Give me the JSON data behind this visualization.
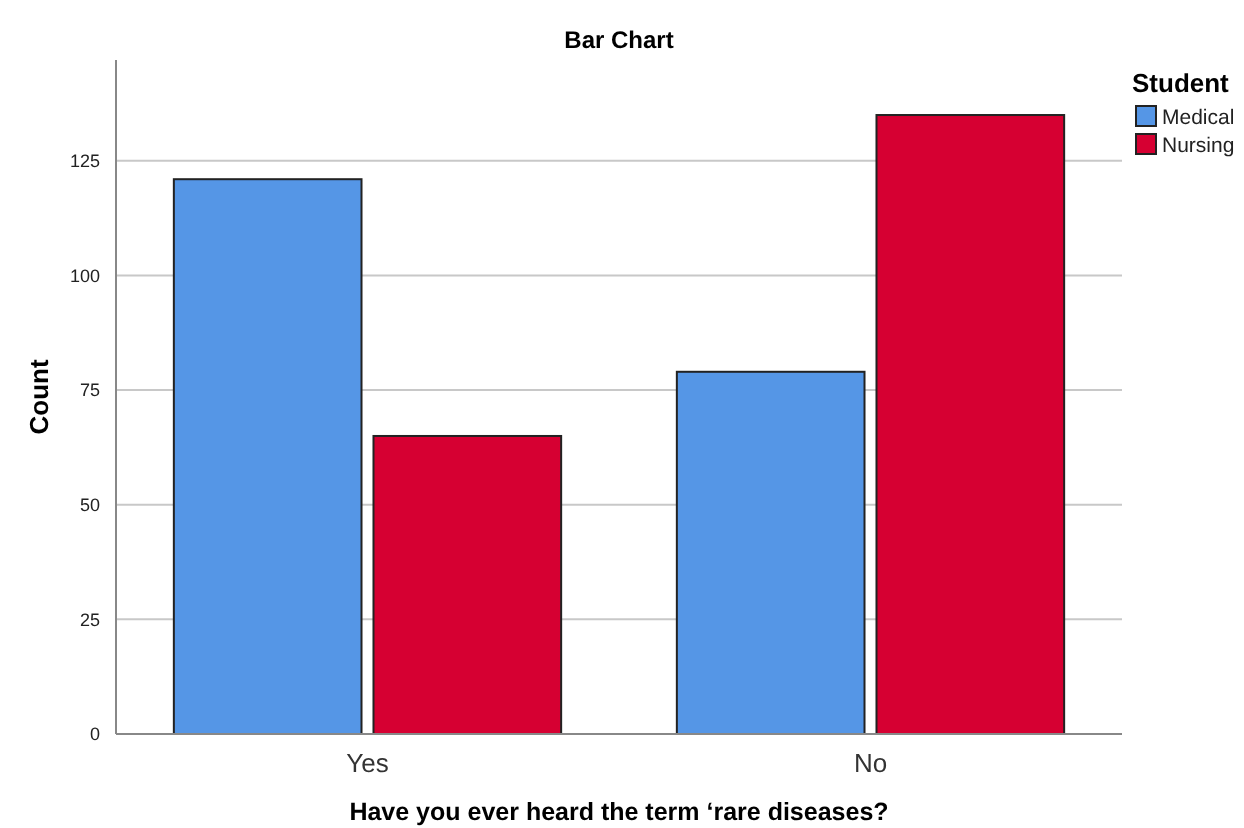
{
  "chart_data": {
    "type": "bar",
    "title": "Bar Chart",
    "xlabel": "Have you ever heard the term ‘rare diseases?",
    "ylabel": "Count",
    "legend_title": "Student",
    "categories": [
      "Yes",
      "No"
    ],
    "series": [
      {
        "name": "Medical",
        "color": "#5596e6",
        "values": [
          121,
          79
        ]
      },
      {
        "name": "Nursing",
        "color": "#d60032",
        "values": [
          65,
          135
        ]
      }
    ],
    "ylim": [
      0,
      147
    ],
    "yticks": [
      0,
      25,
      50,
      75,
      100,
      125
    ],
    "grid": "y",
    "legend": "top right"
  }
}
